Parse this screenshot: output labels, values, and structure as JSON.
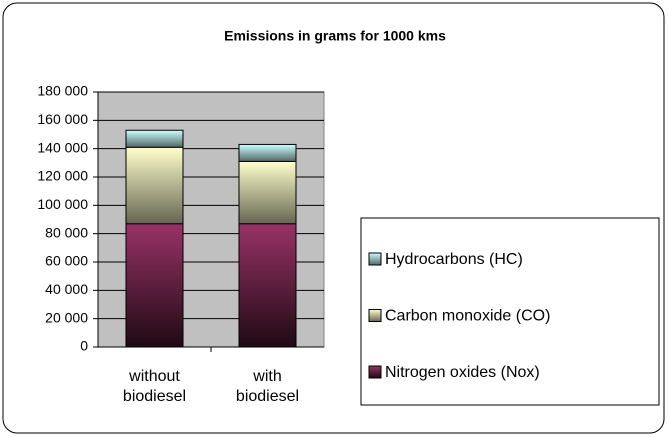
{
  "chart_data": {
    "type": "bar",
    "stacked": true,
    "title": "Emissions in grams for 1000 kms",
    "categories": [
      "without biodiesel",
      "with biodiesel"
    ],
    "series": [
      {
        "name": "Nitrogen oxides (Nox)",
        "color": "#993366",
        "values": [
          87000,
          87000
        ]
      },
      {
        "name": "Carbon monoxide (CO)",
        "color": "#ffffcc",
        "values": [
          54000,
          44000
        ]
      },
      {
        "name": "Hydrocarbons (HC)",
        "color": "#ccffff",
        "values": [
          12000,
          12000
        ]
      }
    ],
    "ylim": [
      0,
      180000
    ],
    "yticks": [
      0,
      {
        "value": 20000,
        "label": "20 000"
      },
      {
        "value": 40000,
        "label": "40 000"
      },
      {
        "value": 60000,
        "label": "60 000"
      },
      {
        "value": 80000,
        "label": "80 000"
      },
      {
        "value": 100000,
        "label": "100 000"
      },
      {
        "value": 120000,
        "label": "120 000"
      },
      {
        "value": 140000,
        "label": "140 000"
      },
      {
        "value": 160000,
        "label": "160 000"
      },
      {
        "value": 180000,
        "label": "180 000"
      }
    ],
    "grid": true,
    "legend": "right"
  }
}
